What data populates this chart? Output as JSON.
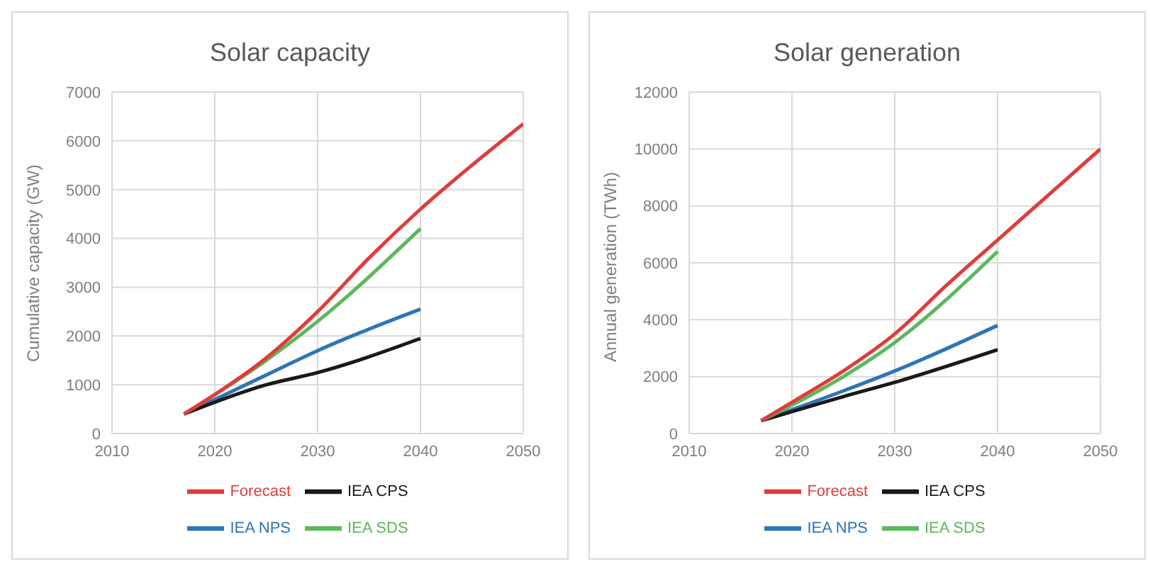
{
  "chart_data": [
    {
      "type": "line",
      "title": "Solar capacity",
      "ylabel": "Cumulative capacity (GW)",
      "xlim": [
        2010,
        2050
      ],
      "xticks": [
        2010,
        2020,
        2030,
        2040,
        2050
      ],
      "ylim": [
        0,
        7000
      ],
      "yticks": [
        0,
        1000,
        2000,
        3000,
        4000,
        5000,
        6000,
        7000
      ],
      "grid": true,
      "legend": "bottom",
      "marker": "none",
      "line_style": "solid",
      "series": [
        {
          "name": "IEA NPS",
          "color": "#2e75b6",
          "x": [
            2017,
            2025,
            2030,
            2040
          ],
          "values": [
            400,
            1200,
            1700,
            2550
          ]
        },
        {
          "name": "IEA CPS",
          "color": "#1a1a1a",
          "x": [
            2017,
            2025,
            2030,
            2040
          ],
          "values": [
            400,
            1000,
            1250,
            1950
          ]
        },
        {
          "name": "IEA SDS",
          "color": "#5cb85c",
          "x": [
            2017,
            2025,
            2030,
            2040
          ],
          "values": [
            400,
            1500,
            2300,
            4200
          ]
        },
        {
          "name": "Forecast",
          "color": "#e03c3c",
          "x": [
            2017,
            2020,
            2025,
            2030,
            2035,
            2040,
            2045,
            2050
          ],
          "values": [
            400,
            800,
            1550,
            2500,
            3600,
            4600,
            5500,
            6350
          ]
        }
      ]
    },
    {
      "type": "line",
      "title": "Solar generation",
      "ylabel": "Annual generation (TWh)",
      "xlim": [
        2010,
        2050
      ],
      "xticks": [
        2010,
        2020,
        2030,
        2040,
        2050
      ],
      "ylim": [
        0,
        12000
      ],
      "yticks": [
        0,
        2000,
        4000,
        6000,
        8000,
        10000,
        12000
      ],
      "grid": true,
      "legend": "bottom",
      "marker": "none",
      "line_style": "solid",
      "series": [
        {
          "name": "IEA NPS",
          "color": "#2e75b6",
          "x": [
            2017,
            2025,
            2030,
            2040
          ],
          "values": [
            450,
            1500,
            2200,
            3800
          ]
        },
        {
          "name": "IEA CPS",
          "color": "#1a1a1a",
          "x": [
            2017,
            2025,
            2030,
            2040
          ],
          "values": [
            450,
            1300,
            1800,
            2950
          ]
        },
        {
          "name": "IEA SDS",
          "color": "#5cb85c",
          "x": [
            2017,
            2025,
            2030,
            2040
          ],
          "values": [
            450,
            2000,
            3200,
            6400
          ]
        },
        {
          "name": "Forecast",
          "color": "#e03c3c",
          "x": [
            2017,
            2020,
            2025,
            2030,
            2035,
            2040,
            2045,
            2050
          ],
          "values": [
            450,
            1100,
            2200,
            3500,
            5200,
            6800,
            8400,
            10000
          ]
        }
      ]
    }
  ]
}
